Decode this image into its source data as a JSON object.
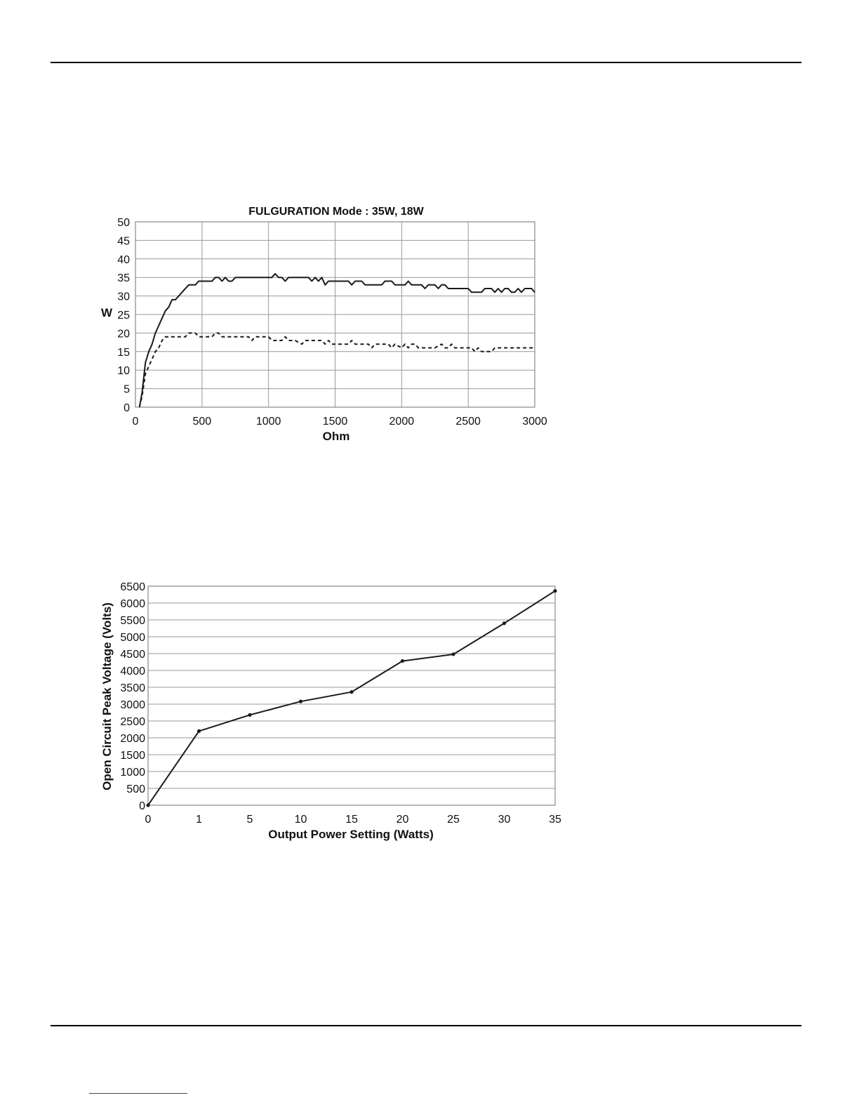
{
  "chart_data": [
    {
      "type": "line",
      "title": "FULGURATION Mode : 35W, 18W",
      "xlabel": "Ohm",
      "ylabel": "W",
      "xlim": [
        0,
        3000
      ],
      "ylim": [
        0,
        50
      ],
      "x_ticks": [
        0,
        500,
        1000,
        1500,
        2000,
        2500,
        3000
      ],
      "y_ticks": [
        0,
        5,
        10,
        15,
        20,
        25,
        30,
        35,
        40,
        45,
        50
      ],
      "grid": true,
      "legend": "none",
      "series": [
        {
          "style": "solid",
          "points": [
            [
              30,
              0
            ],
            [
              50,
              4
            ],
            [
              75,
              12
            ],
            [
              100,
              15
            ],
            [
              125,
              17
            ],
            [
              150,
              20
            ],
            [
              200,
              24
            ],
            [
              225,
              26
            ],
            [
              250,
              27
            ],
            [
              275,
              29
            ],
            [
              300,
              29
            ],
            [
              350,
              31
            ],
            [
              400,
              33
            ],
            [
              450,
              33
            ],
            [
              475,
              34
            ],
            [
              500,
              34
            ],
            [
              550,
              34
            ],
            [
              575,
              34
            ],
            [
              600,
              35
            ],
            [
              625,
              35
            ],
            [
              650,
              34
            ],
            [
              675,
              35
            ],
            [
              700,
              34
            ],
            [
              725,
              34
            ],
            [
              750,
              35
            ],
            [
              800,
              35
            ],
            [
              850,
              35
            ],
            [
              900,
              35
            ],
            [
              950,
              35
            ],
            [
              1000,
              35
            ],
            [
              1025,
              35
            ],
            [
              1050,
              36
            ],
            [
              1075,
              35
            ],
            [
              1100,
              35
            ],
            [
              1125,
              34
            ],
            [
              1150,
              35
            ],
            [
              1200,
              35
            ],
            [
              1250,
              35
            ],
            [
              1300,
              35
            ],
            [
              1325,
              34
            ],
            [
              1350,
              35
            ],
            [
              1375,
              34
            ],
            [
              1400,
              35
            ],
            [
              1425,
              33
            ],
            [
              1450,
              34
            ],
            [
              1500,
              34
            ],
            [
              1550,
              34
            ],
            [
              1600,
              34
            ],
            [
              1625,
              33
            ],
            [
              1650,
              34
            ],
            [
              1700,
              34
            ],
            [
              1725,
              33
            ],
            [
              1800,
              33
            ],
            [
              1850,
              33
            ],
            [
              1875,
              34
            ],
            [
              1925,
              34
            ],
            [
              1950,
              33
            ],
            [
              2000,
              33
            ],
            [
              2025,
              33
            ],
            [
              2050,
              34
            ],
            [
              2075,
              33
            ],
            [
              2100,
              33
            ],
            [
              2150,
              33
            ],
            [
              2175,
              32
            ],
            [
              2200,
              33
            ],
            [
              2250,
              33
            ],
            [
              2275,
              32
            ],
            [
              2300,
              33
            ],
            [
              2325,
              33
            ],
            [
              2350,
              32
            ],
            [
              2400,
              32
            ],
            [
              2450,
              32
            ],
            [
              2500,
              32
            ],
            [
              2525,
              31
            ],
            [
              2575,
              31
            ],
            [
              2600,
              31
            ],
            [
              2625,
              32
            ],
            [
              2675,
              32
            ],
            [
              2700,
              31
            ],
            [
              2725,
              32
            ],
            [
              2750,
              31
            ],
            [
              2775,
              32
            ],
            [
              2800,
              32
            ],
            [
              2825,
              31
            ],
            [
              2850,
              31
            ],
            [
              2875,
              32
            ],
            [
              2900,
              31
            ],
            [
              2925,
              32
            ],
            [
              2950,
              32
            ],
            [
              2975,
              32
            ],
            [
              3000,
              31
            ]
          ]
        },
        {
          "style": "dashed",
          "points": [
            [
              30,
              0
            ],
            [
              50,
              3
            ],
            [
              75,
              9
            ],
            [
              100,
              11
            ],
            [
              125,
              13
            ],
            [
              150,
              15
            ],
            [
              175,
              16
            ],
            [
              200,
              18
            ],
            [
              225,
              19
            ],
            [
              250,
              19
            ],
            [
              300,
              19
            ],
            [
              350,
              19
            ],
            [
              375,
              19
            ],
            [
              400,
              20
            ],
            [
              450,
              20
            ],
            [
              475,
              19
            ],
            [
              500,
              19
            ],
            [
              550,
              19
            ],
            [
              575,
              19
            ],
            [
              600,
              20
            ],
            [
              625,
              20
            ],
            [
              650,
              19
            ],
            [
              700,
              19
            ],
            [
              750,
              19
            ],
            [
              800,
              19
            ],
            [
              850,
              19
            ],
            [
              875,
              18
            ],
            [
              900,
              19
            ],
            [
              950,
              19
            ],
            [
              1000,
              19
            ],
            [
              1025,
              18
            ],
            [
              1050,
              18
            ],
            [
              1100,
              18
            ],
            [
              1125,
              19
            ],
            [
              1150,
              18
            ],
            [
              1200,
              18
            ],
            [
              1250,
              17
            ],
            [
              1275,
              18
            ],
            [
              1300,
              18
            ],
            [
              1350,
              18
            ],
            [
              1400,
              18
            ],
            [
              1425,
              17
            ],
            [
              1450,
              18
            ],
            [
              1475,
              17
            ],
            [
              1500,
              17
            ],
            [
              1550,
              17
            ],
            [
              1600,
              17
            ],
            [
              1625,
              18
            ],
            [
              1650,
              17
            ],
            [
              1700,
              17
            ],
            [
              1725,
              17
            ],
            [
              1750,
              17
            ],
            [
              1775,
              16
            ],
            [
              1800,
              17
            ],
            [
              1850,
              17
            ],
            [
              1875,
              17
            ],
            [
              1900,
              17
            ],
            [
              1925,
              16
            ],
            [
              1950,
              17
            ],
            [
              2000,
              16
            ],
            [
              2025,
              17
            ],
            [
              2050,
              16
            ],
            [
              2075,
              17
            ],
            [
              2100,
              17
            ],
            [
              2125,
              16
            ],
            [
              2150,
              16
            ],
            [
              2200,
              16
            ],
            [
              2250,
              16
            ],
            [
              2300,
              17
            ],
            [
              2325,
              16
            ],
            [
              2350,
              16
            ],
            [
              2375,
              17
            ],
            [
              2400,
              16
            ],
            [
              2450,
              16
            ],
            [
              2500,
              16
            ],
            [
              2525,
              16
            ],
            [
              2550,
              15
            ],
            [
              2575,
              16
            ],
            [
              2600,
              15
            ],
            [
              2625,
              15
            ],
            [
              2650,
              15
            ],
            [
              2675,
              15
            ],
            [
              2700,
              16
            ],
            [
              2750,
              16
            ],
            [
              2800,
              16
            ],
            [
              2850,
              16
            ],
            [
              2900,
              16
            ],
            [
              2950,
              16
            ],
            [
              3000,
              16
            ]
          ]
        }
      ]
    },
    {
      "type": "line",
      "title": "",
      "xlabel": "Output Power Setting (Watts)",
      "ylabel": "Open Circuit Peak Voltage (Volts)",
      "categories": [
        "0",
        "1",
        "5",
        "10",
        "15",
        "20",
        "25",
        "30",
        "35"
      ],
      "ylim": [
        0,
        6500
      ],
      "y_ticks": [
        0,
        500,
        1000,
        1500,
        2000,
        2500,
        3000,
        3500,
        4000,
        4500,
        5000,
        5500,
        6000,
        6500
      ],
      "grid": true,
      "legend": "none",
      "series": [
        {
          "markers": true,
          "values": [
            0,
            2200,
            2680,
            3080,
            3360,
            4280,
            4480,
            5400,
            6360
          ]
        }
      ]
    }
  ],
  "colors": {
    "line": "#1a1a1a",
    "grid": "#999999",
    "frame": "#888888",
    "link_underline": "#2a3fbf"
  }
}
